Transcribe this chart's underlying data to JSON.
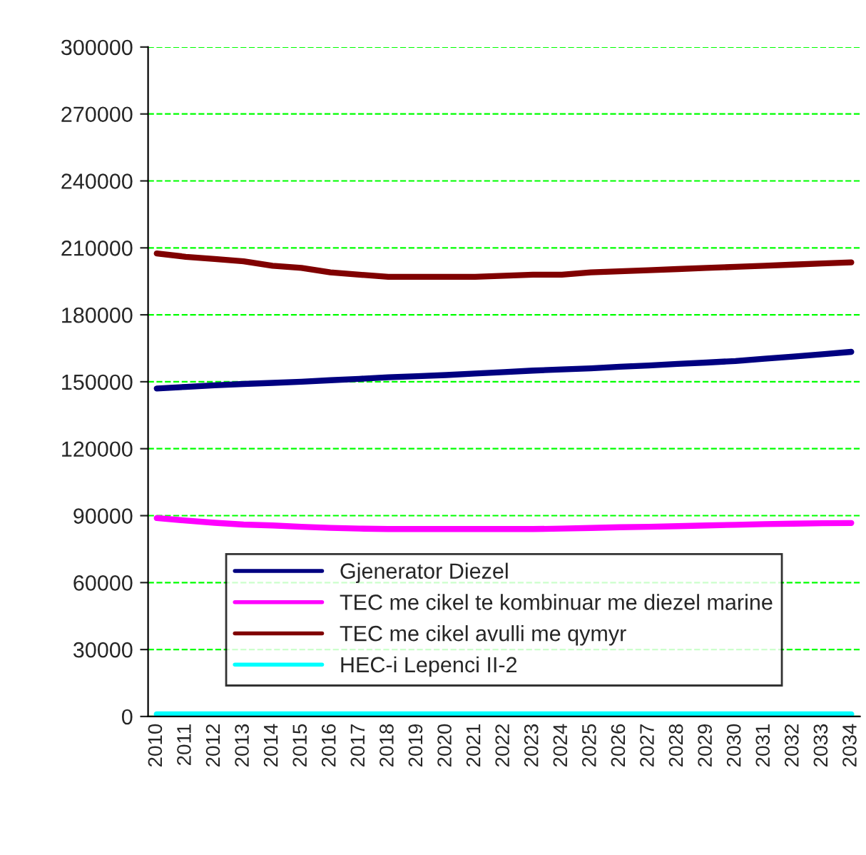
{
  "chart_data": {
    "type": "line",
    "categories": [
      "2010",
      "2011",
      "2012",
      "2013",
      "2014",
      "2015",
      "2016",
      "2017",
      "2018",
      "2019",
      "2020",
      "2021",
      "2022",
      "2023",
      "2024",
      "2025",
      "2026",
      "2027",
      "2028",
      "2029",
      "2030",
      "2031",
      "2032",
      "2033",
      "2034"
    ],
    "series": [
      {
        "name": "Gjenerator Diezel",
        "color": "#000080",
        "values": [
          147000,
          147700,
          148400,
          149000,
          149500,
          150000,
          150700,
          151300,
          152000,
          152500,
          153000,
          153700,
          154300,
          155000,
          155500,
          156000,
          156700,
          157300,
          158000,
          158600,
          159300,
          160300,
          161300,
          162300,
          163400
        ]
      },
      {
        "name": "TEC me cikel te kombinuar me diezel marine",
        "color": "#ff00ff",
        "values": [
          88900,
          87800,
          86800,
          86000,
          85600,
          85000,
          84500,
          84200,
          84000,
          84000,
          84000,
          84000,
          84000,
          84000,
          84200,
          84500,
          84800,
          85000,
          85300,
          85600,
          85900,
          86200,
          86400,
          86600,
          86700
        ]
      },
      {
        "name": "TEC me cikel avulli me qymyr",
        "color": "#800000",
        "values": [
          207500,
          206000,
          205000,
          204000,
          202000,
          201000,
          199000,
          198000,
          197000,
          197000,
          197000,
          197000,
          197500,
          198000,
          198000,
          199000,
          199500,
          200000,
          200500,
          201000,
          201500,
          202000,
          202500,
          203000,
          203500
        ]
      },
      {
        "name": "HEC-i Lepenci II-2",
        "color": "#00ffff",
        "values": [
          1000,
          1000,
          1000,
          1000,
          1000,
          1000,
          1000,
          1000,
          1000,
          1000,
          1000,
          1000,
          1000,
          1000,
          1000,
          1000,
          1000,
          1000,
          1000,
          1000,
          1000,
          1000,
          1000,
          1000,
          1000
        ]
      }
    ],
    "ylim": [
      0,
      300000
    ],
    "yticks": [
      0,
      30000,
      60000,
      90000,
      120000,
      150000,
      180000,
      210000,
      240000,
      270000,
      300000
    ],
    "grid": "y",
    "legend": "bottom",
    "marker": "none",
    "line_style": "solid"
  }
}
